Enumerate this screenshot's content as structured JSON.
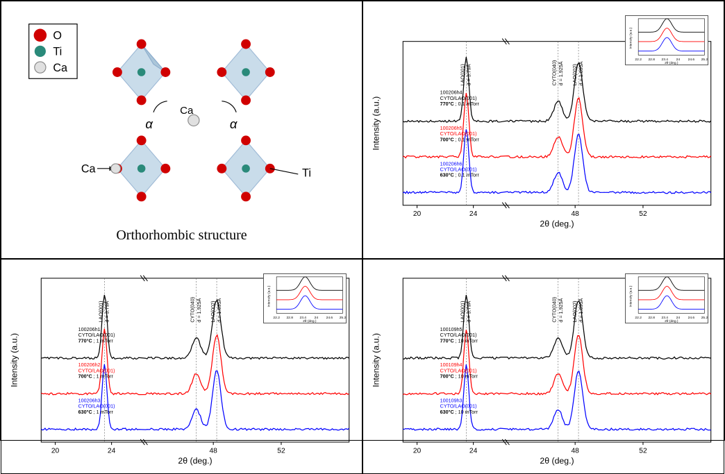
{
  "structure": {
    "caption": "Orthorhombic structure",
    "legend": [
      {
        "label": "O",
        "color": "#d00000"
      },
      {
        "label": "Ti",
        "color": "#2a8a7a"
      },
      {
        "label": "Ca",
        "color": "#e0e0e0"
      }
    ],
    "atom_labels": {
      "ca": "Ca",
      "ti": "Ti"
    },
    "angle_label": "α",
    "octa_fill": "#bcd4e6",
    "octa_stroke": "#88aacc"
  },
  "charts": [
    {
      "pressure": "0.1 mTorr",
      "series": [
        {
          "id": "100206h6",
          "sample": "CYTO/LAO(001)",
          "cond": "630°C ; 0.1 mTorr",
          "color": "#0000ff"
        },
        {
          "id": "100206h5",
          "sample": "CYTO/LAO(001)",
          "cond": "700°C ; 0.1 mTorr",
          "color": "#ff0000"
        },
        {
          "id": "100206h4",
          "sample": "CYTO/LAO(001)",
          "cond": "770°C ; 0.1 mTorr",
          "color": "#000000"
        }
      ],
      "peaks": [
        {
          "label": "LAO(001)",
          "d": "d = 3.79Å",
          "x": 23.5
        },
        {
          "label": "CYTO(040)",
          "d": "d = 1.925Å",
          "x": 47.0
        },
        {
          "label": "LAO(002)",
          "d": "d = 1.895Å",
          "x": 48.2
        }
      ],
      "x_ticks": [
        20,
        24,
        48,
        52
      ],
      "x_label": "2θ (deg.)",
      "y_label": "Intensity (a.u.)",
      "break_at": [
        26,
        44
      ],
      "inset": {
        "x_ticks": [
          22.2,
          22.8,
          23.4,
          24.0,
          24.6,
          25.2
        ],
        "x_label": "2θ (deg.)",
        "y_label": "Intensity (a.u.)"
      }
    },
    {
      "pressure": "1 mTorr",
      "series": [
        {
          "id": "100206h3",
          "sample": "CYTO/LAO(001)",
          "cond": "630°C ; 1 mTorr",
          "color": "#0000ff"
        },
        {
          "id": "100206h2",
          "sample": "CYTO/LAO(001)",
          "cond": "700°C ; 1 mTorr",
          "color": "#ff0000"
        },
        {
          "id": "100206h1",
          "sample": "CYTO/LAO(001)",
          "cond": "770°C ; 1 mTorr",
          "color": "#000000"
        }
      ],
      "peaks": [
        {
          "label": "LAO(001)",
          "d": "d = 3.79Å",
          "x": 23.5
        },
        {
          "label": "CYTO(040)",
          "d": "d = 1.925Å",
          "x": 47.0
        },
        {
          "label": "LAO(002)",
          "d": "d = 1.895Å",
          "x": 48.2
        }
      ],
      "x_ticks": [
        20,
        24,
        48,
        52
      ],
      "x_label": "2θ (deg.)",
      "y_label": "Intensity (a.u.)",
      "break_at": [
        26,
        44
      ],
      "inset": {
        "x_ticks": [
          22.2,
          22.8,
          23.4,
          24.0,
          24.6,
          25.2
        ],
        "x_label": "2θ (deg.)",
        "y_label": "Intensity (a.u.)"
      }
    },
    {
      "pressure": "10 mTorr",
      "series": [
        {
          "id": "100109h3",
          "sample": "CYTO/LAO(001)",
          "cond": "630°C ; 10 mTorr",
          "color": "#0000ff"
        },
        {
          "id": "100109h4",
          "sample": "CYTO/LAO(001)",
          "cond": "700°C ; 10 mTorr",
          "color": "#ff0000"
        },
        {
          "id": "100109h5",
          "sample": "CYTO/LAO(001)",
          "cond": "770°C ; 10 mTorr",
          "color": "#000000"
        }
      ],
      "peaks": [
        {
          "label": "LAO(001)",
          "d": "d = 3.79Å",
          "x": 23.5
        },
        {
          "label": "CYTO(040)",
          "d": "d = 1.925Å",
          "x": 47.0
        },
        {
          "label": "LAO(002)",
          "d": "d = 1.895Å",
          "x": 48.2
        }
      ],
      "x_ticks": [
        20,
        24,
        48,
        52
      ],
      "x_label": "2θ (deg.)",
      "y_label": "Intensity (a.u.)",
      "break_at": [
        26,
        44
      ],
      "inset": {
        "x_ticks": [
          22.2,
          22.8,
          23.4,
          24.0,
          24.6,
          25.2
        ],
        "x_label": "2θ (deg.)",
        "y_label": "Intensity (a.u.)"
      }
    }
  ],
  "chart_style": {
    "bg": "#ffffff",
    "axis_color": "#000000",
    "grid_dash": "2,2",
    "font_size_tick": 10,
    "font_size_label": 12,
    "peak_heights": [
      90,
      28,
      82
    ],
    "baseline": 6,
    "noise": 3,
    "series_offset": 50
  }
}
